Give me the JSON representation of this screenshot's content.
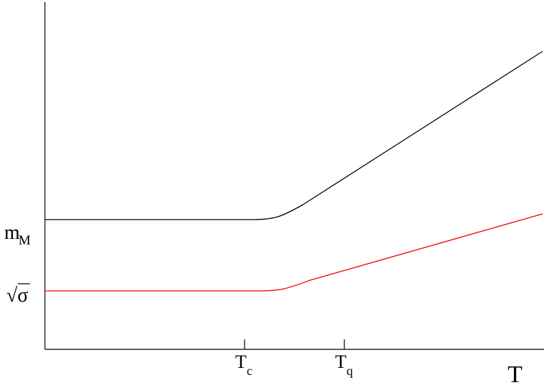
{
  "labels": {
    "mass": {
      "text": "m",
      "sub": "M"
    },
    "tension": {
      "text": "√σ"
    },
    "tc": {
      "text": "T",
      "sub": "c"
    },
    "tq": {
      "text": "T",
      "sub": "q"
    },
    "axis": {
      "text": "T"
    }
  }
}
